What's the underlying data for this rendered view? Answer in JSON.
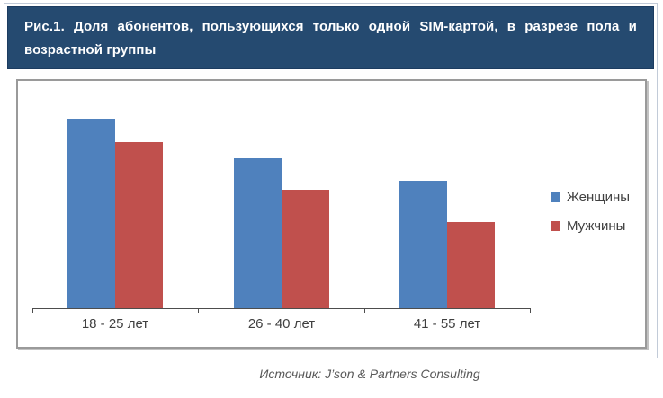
{
  "header": {
    "title_lines": [
      "Рис.1. Доля абонентов,  пользующихся только одной SIM-картой, в разрезе пола и",
      "возрастной группы"
    ]
  },
  "chart_data": {
    "type": "bar",
    "categories": [
      "18 - 25 лет",
      "26 - 40 лет",
      "41 - 55 лет"
    ],
    "series": [
      {
        "name": "Женщины",
        "color": "#4f81bd",
        "values": [
          83,
          66,
          56
        ]
      },
      {
        "name": "Мужчины",
        "color": "#c0504d",
        "values": [
          73,
          52,
          38
        ]
      }
    ],
    "title": "",
    "xlabel": "",
    "ylabel": "",
    "ylim": [
      0,
      100
    ],
    "y_axis_labels_visible": false,
    "grid": false,
    "legend_position": "right"
  },
  "footer": {
    "source": "Источник: J’son & Partners Consulting"
  },
  "colors": {
    "header_bg": "#254a70",
    "series_women": "#4f81bd",
    "series_men": "#c0504d",
    "frame_border": "#c2cbd8",
    "chart_border": "#9a9a9a",
    "axis": "#4d4d4d",
    "label_text": "#404040",
    "source_text": "#595959"
  }
}
